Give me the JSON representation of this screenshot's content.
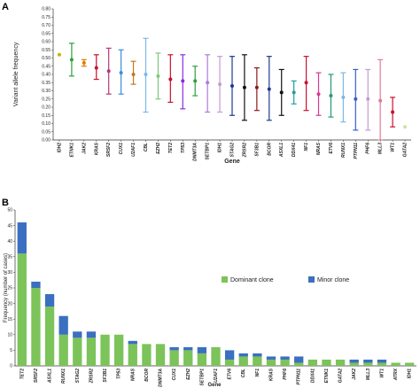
{
  "panel_a_letter": "A",
  "panel_b_letter": "B",
  "chart_data": [
    {
      "type": "scatter",
      "xlabel": "Gene",
      "ylabel": "Variant allele frequency",
      "ylim": [
        0,
        0.8
      ],
      "yticks": [
        "0.00",
        "0.05",
        "0.10",
        "0.15",
        "0.20",
        "0.25",
        "0.30",
        "0.35",
        "0.40",
        "0.45",
        "0.50",
        "0.55",
        "0.60",
        "0.65",
        "0.70",
        "0.75",
        "0.80"
      ],
      "grid": false,
      "categories": [
        "IDH2",
        "ETNK1",
        "JAK2",
        "KRAS",
        "SRSF2",
        "CUX1",
        "U2AF1",
        "CBL",
        "EZH2",
        "TET2",
        "TP53",
        "DNMT3A",
        "SETBP1",
        "IDH1",
        "STAG2",
        "ZRSR2",
        "SF3B1",
        "BCOR",
        "ASXL1",
        "DDX41",
        "NF1",
        "NRAS",
        "ETV6",
        "RUNX1",
        "PTPN11",
        "PHF6",
        "MLL3",
        "WT1",
        "GATA2"
      ],
      "points": [
        {
          "gene": "IDH2",
          "mean": 0.52,
          "low": 0.52,
          "high": 0.52,
          "color": "#c8b400"
        },
        {
          "gene": "ETNK1",
          "mean": 0.49,
          "low": 0.39,
          "high": 0.59,
          "color": "#2e9e3e"
        },
        {
          "gene": "JAK2",
          "mean": 0.47,
          "low": 0.45,
          "high": 0.49,
          "color": "#e07b00"
        },
        {
          "gene": "KRAS",
          "mean": 0.44,
          "low": 0.37,
          "high": 0.52,
          "color": "#c8102e"
        },
        {
          "gene": "SRSF2",
          "mean": 0.42,
          "low": 0.28,
          "high": 0.56,
          "color": "#b03a7a"
        },
        {
          "gene": "CUX1",
          "mean": 0.41,
          "low": 0.28,
          "high": 0.55,
          "color": "#3a8fd6"
        },
        {
          "gene": "U2AF1",
          "mean": 0.4,
          "low": 0.34,
          "high": 0.48,
          "color": "#c47a1a"
        },
        {
          "gene": "CBL",
          "mean": 0.4,
          "low": 0.17,
          "high": 0.62,
          "color": "#7ab8e8"
        },
        {
          "gene": "EZH2",
          "mean": 0.39,
          "low": 0.25,
          "high": 0.53,
          "color": "#7ec87e"
        },
        {
          "gene": "TET2",
          "mean": 0.37,
          "low": 0.23,
          "high": 0.52,
          "color": "#c8102e"
        },
        {
          "gene": "TP53",
          "mean": 0.36,
          "low": 0.19,
          "high": 0.52,
          "color": "#8a2be2"
        },
        {
          "gene": "DNMT3A",
          "mean": 0.36,
          "low": 0.27,
          "high": 0.45,
          "color": "#2e9e3e"
        },
        {
          "gene": "SETBP1",
          "mean": 0.35,
          "low": 0.17,
          "high": 0.52,
          "color": "#b07ad6"
        },
        {
          "gene": "IDH1",
          "mean": 0.34,
          "low": 0.17,
          "high": 0.51,
          "color": "#c49ad6"
        },
        {
          "gene": "STAG2",
          "mean": 0.33,
          "low": 0.15,
          "high": 0.51,
          "color": "#1f3a93"
        },
        {
          "gene": "ZRSR2",
          "mean": 0.32,
          "low": 0.12,
          "high": 0.52,
          "color": "#111111"
        },
        {
          "gene": "SF3B1",
          "mean": 0.32,
          "low": 0.18,
          "high": 0.44,
          "color": "#8b1a1a"
        },
        {
          "gene": "BCOR",
          "mean": 0.31,
          "low": 0.12,
          "high": 0.51,
          "color": "#1f3a93"
        },
        {
          "gene": "ASXL1",
          "mean": 0.29,
          "low": 0.15,
          "high": 0.43,
          "color": "#111111"
        },
        {
          "gene": "DDX41",
          "mean": 0.29,
          "low": 0.22,
          "high": 0.36,
          "color": "#1f9e9e"
        },
        {
          "gene": "NF1",
          "mean": 0.35,
          "low": 0.18,
          "high": 0.51,
          "color": "#c8102e"
        },
        {
          "gene": "NRAS",
          "mean": 0.28,
          "low": 0.15,
          "high": 0.41,
          "color": "#d63a8f"
        },
        {
          "gene": "ETV6",
          "mean": 0.27,
          "low": 0.14,
          "high": 0.4,
          "color": "#1f9e6e"
        },
        {
          "gene": "RUNX1",
          "mean": 0.26,
          "low": 0.11,
          "high": 0.41,
          "color": "#7ab8e8"
        },
        {
          "gene": "PTPN11",
          "mean": 0.25,
          "low": 0.06,
          "high": 0.43,
          "color": "#3a5fc8"
        },
        {
          "gene": "PHF6",
          "mean": 0.25,
          "low": 0.06,
          "high": 0.43,
          "color": "#c49ad6"
        },
        {
          "gene": "MLL3",
          "mean": 0.24,
          "low": 0.0,
          "high": 0.49,
          "color": "#e07b9a"
        },
        {
          "gene": "WT1",
          "mean": 0.17,
          "low": 0.08,
          "high": 0.26,
          "color": "#c8102e"
        },
        {
          "gene": "GATA2",
          "mean": 0.08,
          "low": 0.08,
          "high": 0.08,
          "color": "#c8e6a0"
        }
      ]
    },
    {
      "type": "bar",
      "stacked": true,
      "xlabel": "Gene",
      "ylabel": "Frequency (number of cases)",
      "ylim": [
        0,
        50
      ],
      "yticks": [
        "0",
        "5",
        "10",
        "15",
        "20",
        "25",
        "30",
        "35",
        "40",
        "45",
        "50"
      ],
      "legend_position": "right",
      "categories": [
        "TET2",
        "SRSF2",
        "ASXL1",
        "RUNX1",
        "STAG2",
        "ZRSR2",
        "SF3B1",
        "TP53",
        "NRAS",
        "BCOR",
        "DNMT3A",
        "CUX1",
        "EZH2",
        "SETBP1",
        "U2AF1",
        "ETV6",
        "CBL",
        "NF1",
        "KRAS",
        "PHF6",
        "PTPN11",
        "DDX41",
        "ETNK1",
        "GATA2",
        "JAK2",
        "MLL3",
        "WT1",
        "ATRX",
        "IDH1"
      ],
      "series": [
        {
          "name": "Dominant clone",
          "color": "#7cc35a",
          "values": [
            36,
            25,
            19,
            10,
            9,
            9,
            10,
            10,
            7,
            7,
            7,
            5,
            5,
            4,
            6,
            2,
            3,
            3,
            2,
            2,
            1,
            2,
            2,
            2,
            1,
            1,
            1,
            1,
            1
          ]
        },
        {
          "name": "Minor clone",
          "color": "#3b6fc0",
          "values": [
            10,
            2,
            4,
            6,
            2,
            2,
            0,
            0,
            1,
            0,
            0,
            1,
            1,
            2,
            0,
            3,
            1,
            1,
            1,
            1,
            2,
            0,
            0,
            0,
            1,
            1,
            1,
            0,
            0
          ]
        }
      ]
    }
  ]
}
